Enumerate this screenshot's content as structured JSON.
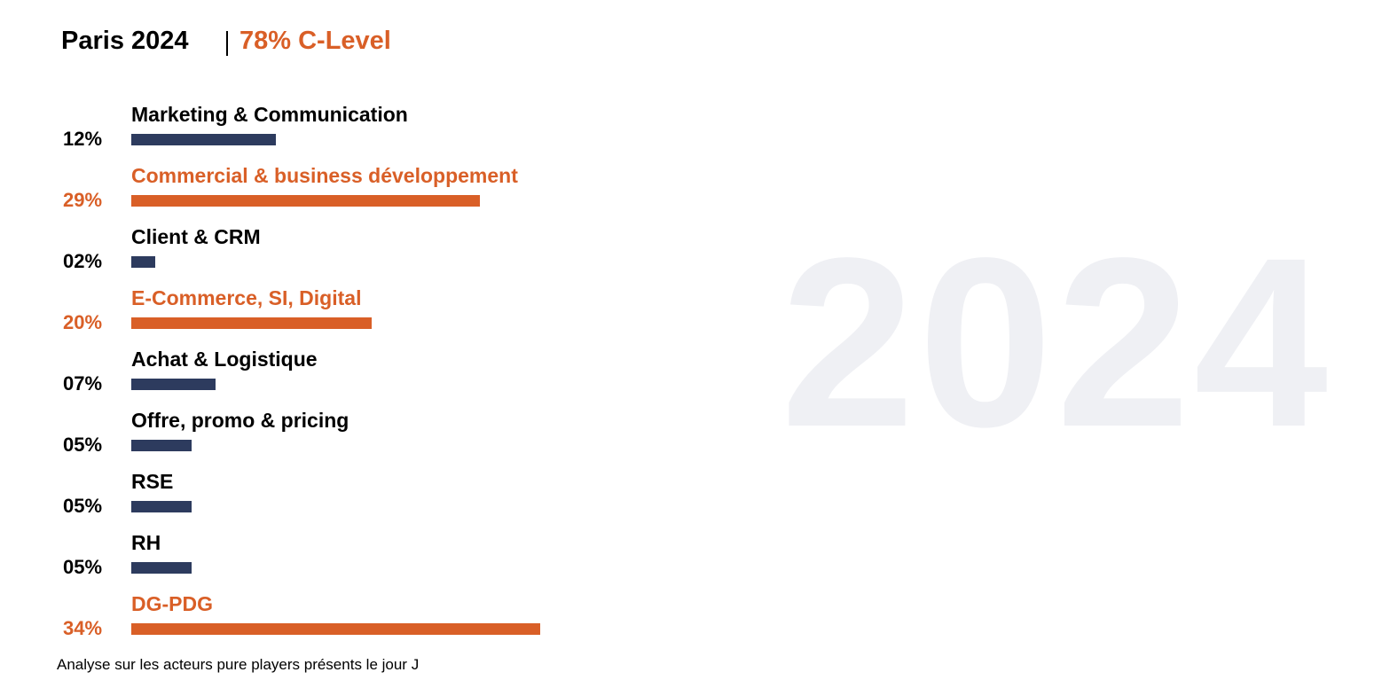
{
  "header": {
    "title": "Paris 2024",
    "subtitle": "78% C-Level"
  },
  "watermark": "2024",
  "footnote": "Analyse sur les acteurs pure players présents le jour J",
  "colors": {
    "highlight": "#d95f27",
    "default": "#2d3b5e",
    "watermark": "#eff0f4"
  },
  "chart_data": {
    "type": "bar",
    "orientation": "horizontal",
    "title": "Paris 2024",
    "subtitle": "78% C-Level",
    "categories": [
      "Marketing & Communication",
      "Commercial & business développement",
      "Client & CRM",
      "E-Commerce, SI, Digital",
      "Achat & Logistique",
      "Offre, promo & pricing",
      "RSE",
      "RH",
      "DG-PDG"
    ],
    "values": [
      12,
      29,
      2,
      20,
      7,
      5,
      5,
      5,
      34
    ],
    "labels": [
      "12%",
      "29%",
      "02%",
      "20%",
      "07%",
      "05%",
      "05%",
      "05%",
      "34%"
    ],
    "highlighted": [
      false,
      true,
      false,
      true,
      false,
      false,
      false,
      false,
      true
    ],
    "grid": false
  }
}
